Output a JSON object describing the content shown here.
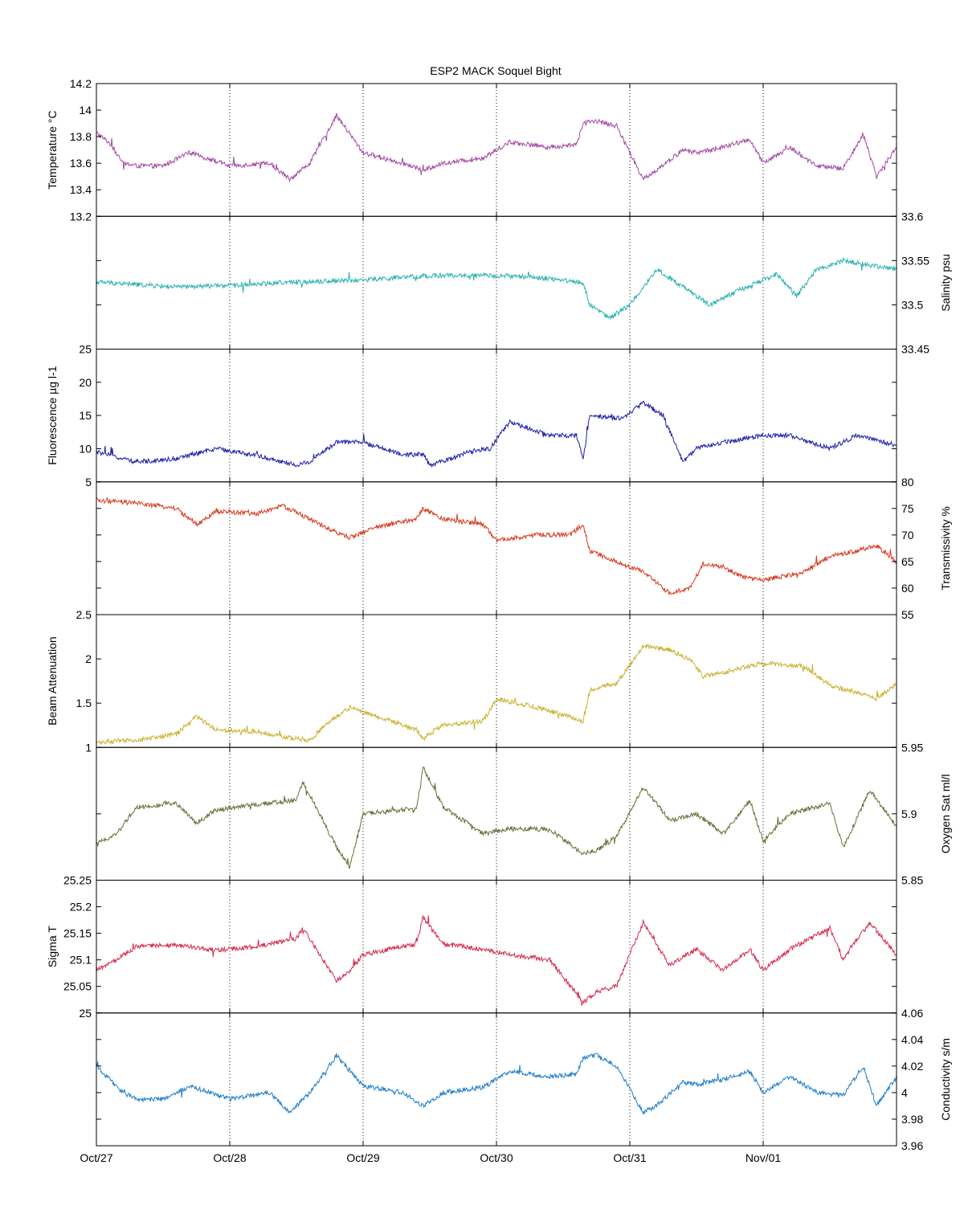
{
  "title": "ESP2 MACK  Soquel Bight",
  "chart_data": {
    "type": "line",
    "title": "ESP2 MACK  Soquel Bight",
    "x_ticks": [
      "Oct/27",
      "Oct/28",
      "Oct/29",
      "Oct/30",
      "Oct/31",
      "Nov/01"
    ],
    "x_range_days": [
      0,
      6
    ],
    "grid": "vertical dotted at each date tick",
    "panels": [
      {
        "name": "temperature",
        "ylabel": "Temperature °C",
        "axis_side": "left",
        "ylim": [
          13.2,
          14.2
        ],
        "ticks": [
          "13.2",
          "13.4",
          "13.6",
          "13.8",
          "14",
          "14.2"
        ],
        "color": "#a349a4",
        "x": [
          0,
          0.1,
          0.2,
          0.3,
          0.5,
          0.7,
          1.0,
          1.3,
          1.45,
          1.6,
          1.8,
          2.0,
          2.3,
          2.45,
          2.6,
          2.9,
          3.1,
          3.4,
          3.6,
          3.65,
          3.75,
          3.9,
          4.1,
          4.2,
          4.4,
          4.5,
          4.7,
          4.9,
          5.0,
          5.2,
          5.4,
          5.6,
          5.75,
          5.85,
          6.0
        ],
        "values": [
          13.83,
          13.75,
          13.6,
          13.58,
          13.58,
          13.68,
          13.58,
          13.6,
          13.48,
          13.6,
          13.96,
          13.68,
          13.6,
          13.55,
          13.6,
          13.64,
          13.76,
          13.72,
          13.74,
          13.9,
          13.92,
          13.88,
          13.48,
          13.55,
          13.7,
          13.68,
          13.72,
          13.78,
          13.6,
          13.72,
          13.58,
          13.56,
          13.82,
          13.5,
          13.72
        ]
      },
      {
        "name": "salinity",
        "ylabel": "Salinity psu",
        "axis_side": "right",
        "ylim": [
          33.45,
          33.6
        ],
        "ticks": [
          "33.45",
          "33.5",
          "33.55",
          "33.6"
        ],
        "color": "#2ab0b0",
        "x": [
          0,
          0.3,
          0.6,
          1.0,
          1.5,
          2.0,
          2.5,
          3.0,
          3.4,
          3.65,
          3.7,
          3.85,
          4.0,
          4.2,
          4.4,
          4.6,
          4.8,
          5.0,
          5.1,
          5.25,
          5.4,
          5.6,
          5.8,
          6.0
        ],
        "values": [
          33.526,
          33.523,
          33.52,
          33.522,
          33.526,
          33.528,
          33.533,
          33.533,
          33.53,
          33.525,
          33.5,
          33.485,
          33.5,
          33.54,
          33.52,
          33.5,
          33.515,
          33.528,
          33.535,
          33.51,
          33.54,
          33.55,
          33.545,
          33.54
        ]
      },
      {
        "name": "fluorescence",
        "ylabel": "Fluorescence µg l-1",
        "axis_side": "left",
        "ylim": [
          5,
          25
        ],
        "ticks": [
          "5",
          "10",
          "15",
          "20",
          "25"
        ],
        "color": "#1f1fa6",
        "x": [
          0,
          0.3,
          0.6,
          0.9,
          1.2,
          1.5,
          1.6,
          1.8,
          2.0,
          2.3,
          2.45,
          2.5,
          2.8,
          2.95,
          3.1,
          3.4,
          3.6,
          3.65,
          3.7,
          3.95,
          4.1,
          4.25,
          4.4,
          4.5,
          4.7,
          5.0,
          5.2,
          5.5,
          5.7,
          6.0
        ],
        "values": [
          9.5,
          8,
          8.5,
          10,
          9,
          7.5,
          8,
          11,
          11,
          9,
          9.2,
          7.5,
          9.5,
          10,
          14,
          12,
          12,
          8.5,
          15,
          14.5,
          17,
          15,
          8,
          10,
          11,
          12,
          12,
          10,
          12,
          10.5
        ]
      },
      {
        "name": "transmissivity",
        "ylabel": "Transmissivity %",
        "axis_side": "right",
        "ylim": [
          55,
          80
        ],
        "ticks": [
          "55",
          "60",
          "65",
          "70",
          "75",
          "80"
        ],
        "color": "#d63a1f",
        "x": [
          0,
          0.3,
          0.6,
          0.75,
          0.9,
          1.2,
          1.4,
          1.6,
          1.75,
          1.9,
          2.1,
          2.4,
          2.45,
          2.6,
          2.9,
          3.0,
          3.3,
          3.55,
          3.65,
          3.7,
          3.9,
          4.1,
          4.3,
          4.45,
          4.55,
          4.7,
          4.85,
          5.0,
          5.3,
          5.5,
          5.7,
          5.85,
          6.0
        ],
        "values": [
          76.5,
          76,
          75,
          72,
          74.5,
          74,
          75.5,
          73,
          71,
          69.5,
          71.5,
          73,
          75,
          73,
          72,
          69,
          70,
          70,
          72,
          67,
          65,
          63,
          59,
          60,
          64.5,
          64,
          62,
          61.5,
          63,
          66,
          67,
          68,
          65
        ]
      },
      {
        "name": "beam_attenuation",
        "ylabel": "Beam Attenuation",
        "axis_side": "left",
        "ylim": [
          1,
          2.5
        ],
        "ticks": [
          "1",
          "1.5",
          "2",
          "2.5"
        ],
        "color": "#c9b230",
        "x": [
          0,
          0.3,
          0.6,
          0.75,
          0.9,
          1.2,
          1.4,
          1.6,
          1.75,
          1.9,
          2.1,
          2.4,
          2.45,
          2.6,
          2.9,
          3.0,
          3.3,
          3.55,
          3.65,
          3.7,
          3.9,
          4.1,
          4.3,
          4.45,
          4.55,
          4.7,
          4.85,
          5.0,
          5.3,
          5.5,
          5.7,
          5.85,
          6.0
        ],
        "values": [
          1.06,
          1.08,
          1.15,
          1.35,
          1.2,
          1.18,
          1.12,
          1.08,
          1.3,
          1.45,
          1.35,
          1.2,
          1.1,
          1.25,
          1.3,
          1.55,
          1.45,
          1.35,
          1.28,
          1.65,
          1.72,
          2.15,
          2.1,
          2.0,
          1.8,
          1.85,
          1.9,
          1.95,
          1.92,
          1.7,
          1.62,
          1.55,
          1.72
        ]
      },
      {
        "name": "oxygen",
        "ylabel": "Oxygen Sat ml/l",
        "axis_side": "right",
        "ylim": [
          5.85,
          5.95
        ],
        "ticks": [
          "5.85",
          "5.9",
          "5.95"
        ],
        "color": "#6e6e3a",
        "x": [
          0,
          0.15,
          0.3,
          0.6,
          0.75,
          0.9,
          1.2,
          1.5,
          1.55,
          1.8,
          1.9,
          2.0,
          2.4,
          2.45,
          2.6,
          2.9,
          3.1,
          3.4,
          3.65,
          3.75,
          3.9,
          4.1,
          4.3,
          4.5,
          4.7,
          4.9,
          5.0,
          5.2,
          5.5,
          5.6,
          5.65,
          5.8,
          6.0
        ],
        "values": [
          5.877,
          5.885,
          5.905,
          5.908,
          5.893,
          5.903,
          5.907,
          5.91,
          5.924,
          5.875,
          5.86,
          5.9,
          5.904,
          5.935,
          5.905,
          5.885,
          5.889,
          5.888,
          5.87,
          5.872,
          5.883,
          5.92,
          5.895,
          5.9,
          5.885,
          5.91,
          5.88,
          5.9,
          5.908,
          5.875,
          5.885,
          5.918,
          5.89
        ]
      },
      {
        "name": "sigma_t",
        "ylabel": "Sigma T",
        "axis_side": "left",
        "ylim": [
          25,
          25.25
        ],
        "ticks": [
          "25",
          "25.05",
          "25.1",
          "25.15",
          "25.2",
          "25.25"
        ],
        "color": "#d42b4f",
        "x": [
          0,
          0.15,
          0.3,
          0.6,
          0.9,
          1.2,
          1.5,
          1.55,
          1.8,
          1.9,
          2.0,
          2.4,
          2.45,
          2.6,
          2.9,
          3.1,
          3.4,
          3.65,
          3.75,
          3.9,
          4.1,
          4.3,
          4.5,
          4.7,
          4.9,
          5.0,
          5.2,
          5.5,
          5.6,
          5.65,
          5.8,
          6.0
        ],
        "values": [
          25.08,
          25.1,
          25.125,
          25.128,
          25.118,
          25.125,
          25.14,
          25.16,
          25.06,
          25.08,
          25.11,
          25.13,
          25.18,
          25.13,
          25.12,
          25.11,
          25.1,
          25.02,
          25.04,
          25.05,
          25.17,
          25.09,
          25.12,
          25.08,
          25.12,
          25.08,
          25.12,
          25.16,
          25.1,
          25.12,
          25.17,
          25.11
        ]
      },
      {
        "name": "conductivity",
        "ylabel": "Conductivity s/m",
        "axis_side": "right",
        "ylim": [
          3.96,
          4.06
        ],
        "ticks": [
          "3.96",
          "3.98",
          "4",
          "4.02",
          "4.04",
          "4.06"
        ],
        "color": "#1f7fc9",
        "x": [
          0,
          0.1,
          0.2,
          0.3,
          0.5,
          0.7,
          1.0,
          1.3,
          1.45,
          1.6,
          1.8,
          2.0,
          2.3,
          2.45,
          2.6,
          2.9,
          3.1,
          3.4,
          3.6,
          3.65,
          3.75,
          3.9,
          4.1,
          4.2,
          4.4,
          4.5,
          4.7,
          4.9,
          5.0,
          5.2,
          5.4,
          5.6,
          5.75,
          5.85,
          6.0
        ],
        "values": [
          4.02,
          4.01,
          4.0,
          3.995,
          3.995,
          4.005,
          3.995,
          4.0,
          3.985,
          4.0,
          4.028,
          4.005,
          4.0,
          3.99,
          4.0,
          4.004,
          4.016,
          4.012,
          4.014,
          4.026,
          4.028,
          4.02,
          3.985,
          3.99,
          4.008,
          4.006,
          4.01,
          4.016,
          4.0,
          4.012,
          4.0,
          3.998,
          4.02,
          3.99,
          4.012
        ]
      }
    ]
  }
}
